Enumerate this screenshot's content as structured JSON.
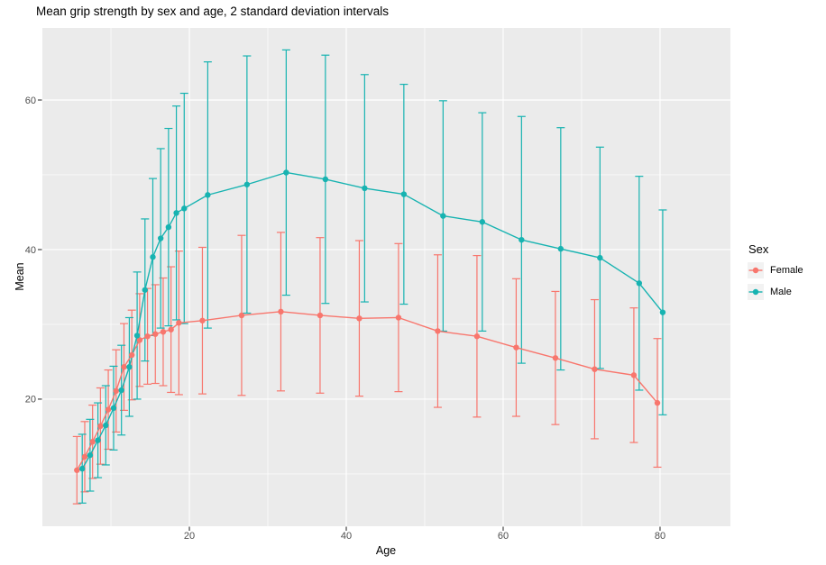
{
  "title": "Mean grip strength by sex and age, 2 standard deviation intervals",
  "axes": {
    "x_label": "Age",
    "y_label": "Mean",
    "x_major_ticks": [
      20,
      40,
      60,
      80
    ],
    "x_minor_ticks": [
      10,
      30,
      50,
      70
    ],
    "y_major_ticks": [
      20,
      40,
      60
    ],
    "y_minor_ticks": [
      10,
      30,
      50
    ],
    "x_range": [
      1.26,
      88.97
    ],
    "y_range": [
      3.0,
      69.64
    ]
  },
  "legend": {
    "title": "Sex",
    "entries": [
      {
        "label": "Female",
        "color": "#F8766D"
      },
      {
        "label": "Male",
        "color": "#17B3B1"
      }
    ]
  },
  "style": {
    "female_color": "#F8766D",
    "male_color": "#17B3B1",
    "panel_bg": "#EBEBEB",
    "grid_color": "#FFFFFF",
    "legend_key_bg": "#F2F2F2",
    "tick_label_color": "#4D4D4D",
    "tick_mark_color": "#333333",
    "title_color": "#000000"
  },
  "chart_data": {
    "type": "line",
    "title": "Mean grip strength by sex and age, 2 standard deviation intervals",
    "xlabel": "Age",
    "ylabel": "Mean",
    "error_bars": "mean ± 2 standard deviations",
    "dodge_age_offset": 0.34,
    "legend_position": "right",
    "grid": true,
    "series": [
      {
        "name": "Female",
        "color": "#F8766D",
        "points": [
          {
            "age": 6,
            "mean": 10.5,
            "sd2": 4.5
          },
          {
            "age": 7,
            "mean": 12.3,
            "sd2": 4.7
          },
          {
            "age": 8,
            "mean": 14.3,
            "sd2": 4.9
          },
          {
            "age": 9,
            "mean": 16.4,
            "sd2": 5.1
          },
          {
            "age": 10,
            "mean": 18.6,
            "sd2": 5.3
          },
          {
            "age": 11,
            "mean": 21.1,
            "sd2": 5.5
          },
          {
            "age": 12,
            "mean": 24.3,
            "sd2": 5.8
          },
          {
            "age": 13,
            "mean": 25.9,
            "sd2": 6.0
          },
          {
            "age": 14,
            "mean": 27.9,
            "sd2": 6.2
          },
          {
            "age": 15,
            "mean": 28.4,
            "sd2": 6.4
          },
          {
            "age": 16,
            "mean": 28.7,
            "sd2": 6.6
          },
          {
            "age": 17,
            "mean": 29.0,
            "sd2": 7.2
          },
          {
            "age": 18,
            "mean": 29.3,
            "sd2": 8.4
          },
          {
            "age": 19,
            "mean": 30.2,
            "sd2": 9.6
          },
          {
            "age": 22,
            "mean": 30.5,
            "sd2": 9.8
          },
          {
            "age": 27,
            "mean": 31.2,
            "sd2": 10.7
          },
          {
            "age": 32,
            "mean": 31.7,
            "sd2": 10.6
          },
          {
            "age": 37,
            "mean": 31.2,
            "sd2": 10.4
          },
          {
            "age": 42,
            "mean": 30.8,
            "sd2": 10.4
          },
          {
            "age": 47,
            "mean": 30.9,
            "sd2": 9.9
          },
          {
            "age": 52,
            "mean": 29.1,
            "sd2": 10.2
          },
          {
            "age": 57,
            "mean": 28.4,
            "sd2": 10.8
          },
          {
            "age": 62,
            "mean": 26.9,
            "sd2": 9.2
          },
          {
            "age": 67,
            "mean": 25.5,
            "sd2": 8.9
          },
          {
            "age": 72,
            "mean": 24.0,
            "sd2": 9.3
          },
          {
            "age": 77,
            "mean": 23.2,
            "sd2": 9.0
          },
          {
            "age": 80,
            "mean": 19.5,
            "sd2": 8.6
          }
        ]
      },
      {
        "name": "Male",
        "color": "#17B3B1",
        "points": [
          {
            "age": 6,
            "mean": 10.7,
            "sd2": 4.6
          },
          {
            "age": 7,
            "mean": 12.5,
            "sd2": 4.8
          },
          {
            "age": 8,
            "mean": 14.5,
            "sd2": 5.0
          },
          {
            "age": 9,
            "mean": 16.5,
            "sd2": 5.3
          },
          {
            "age": 10,
            "mean": 18.8,
            "sd2": 5.6
          },
          {
            "age": 11,
            "mean": 21.2,
            "sd2": 6.0
          },
          {
            "age": 12,
            "mean": 24.3,
            "sd2": 6.6
          },
          {
            "age": 13,
            "mean": 28.5,
            "sd2": 8.5
          },
          {
            "age": 14,
            "mean": 34.6,
            "sd2": 9.5
          },
          {
            "age": 15,
            "mean": 39.0,
            "sd2": 10.5
          },
          {
            "age": 16,
            "mean": 41.5,
            "sd2": 12.0
          },
          {
            "age": 17,
            "mean": 43.0,
            "sd2": 13.2
          },
          {
            "age": 18,
            "mean": 44.9,
            "sd2": 14.3
          },
          {
            "age": 19,
            "mean": 45.5,
            "sd2": 15.4
          },
          {
            "age": 22,
            "mean": 47.3,
            "sd2": 17.8
          },
          {
            "age": 27,
            "mean": 48.7,
            "sd2": 17.2
          },
          {
            "age": 32,
            "mean": 50.3,
            "sd2": 16.4
          },
          {
            "age": 37,
            "mean": 49.4,
            "sd2": 16.6
          },
          {
            "age": 42,
            "mean": 48.2,
            "sd2": 15.2
          },
          {
            "age": 47,
            "mean": 47.4,
            "sd2": 14.7
          },
          {
            "age": 52,
            "mean": 44.5,
            "sd2": 15.4
          },
          {
            "age": 57,
            "mean": 43.7,
            "sd2": 14.6
          },
          {
            "age": 62,
            "mean": 41.3,
            "sd2": 16.5
          },
          {
            "age": 67,
            "mean": 40.1,
            "sd2": 16.2
          },
          {
            "age": 72,
            "mean": 38.9,
            "sd2": 14.8
          },
          {
            "age": 77,
            "mean": 35.5,
            "sd2": 14.3
          },
          {
            "age": 80,
            "mean": 31.6,
            "sd2": 13.7
          }
        ]
      }
    ]
  }
}
